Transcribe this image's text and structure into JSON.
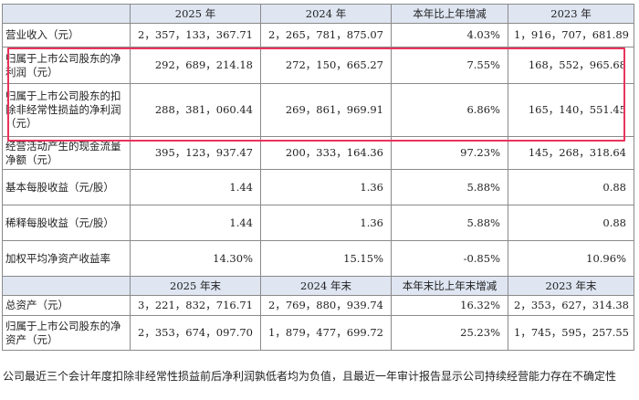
{
  "headers_period": [
    "",
    "2025 年",
    "2024 年",
    "本年比上年增减",
    "2023 年"
  ],
  "rows_period": [
    {
      "label": "营业收入（元）",
      "v2025": "2，357，133，367.71",
      "v2024": "2，265，781，875.07",
      "change": "4.03%",
      "v2023": "1，916，707，681.89"
    },
    {
      "label": "归属于上市公司股东的净利润（元）",
      "v2025": "292，689，214.18",
      "v2024": "272，150，665.27",
      "change": "7.55%",
      "v2023": "168，552，965.68"
    },
    {
      "label": "归属于上市公司股东的扣除非经常性损益的净利润（元）",
      "v2025": "288，381，060.44",
      "v2024": "269，861，969.91",
      "change": "6.86%",
      "v2023": "165，140，551.45"
    },
    {
      "label": "经营活动产生的现金流量净额（元）",
      "v2025": "395，123，937.47",
      "v2024": "200，333，164.36",
      "change": "97.23%",
      "v2023": "145，268，318.64"
    },
    {
      "label": "基本每股收益（元/股）",
      "v2025": "1.44",
      "v2024": "1.36",
      "change": "5.88%",
      "v2023": "0.88"
    },
    {
      "label": "稀释每股收益（元/股）",
      "v2025": "1.44",
      "v2024": "1.36",
      "change": "5.88%",
      "v2023": "0.88"
    },
    {
      "label": "加权平均净资产收益率",
      "v2025": "14.30%",
      "v2024": "15.15%",
      "change": "-0.85%",
      "v2023": "10.96%"
    }
  ],
  "headers_end": [
    "",
    "2025 年末",
    "2024 年末",
    "本年末比上年末增减",
    "2023 年末"
  ],
  "rows_end": [
    {
      "label": "总资产（元）",
      "v2025": "3，221，832，716.71",
      "v2024": "2，769，880，939.74",
      "change": "16.32%",
      "v2023": "2，353，627，314.38"
    },
    {
      "label": "归属于上市公司股东的净资产（元）",
      "v2025": "2，353，674，097.70",
      "v2024": "1，879，477，699.72",
      "change": "25.23%",
      "v2023": "1，745，595，257.55"
    }
  ],
  "note": "公司最近三个会计年度扣除非经常性损益前后净利润孰低者均为负值，且最近一年审计报告显示公司持续经营能力存在不确定性",
  "highlight_color": "#e8345c",
  "header_bg": "#dfe6f2"
}
